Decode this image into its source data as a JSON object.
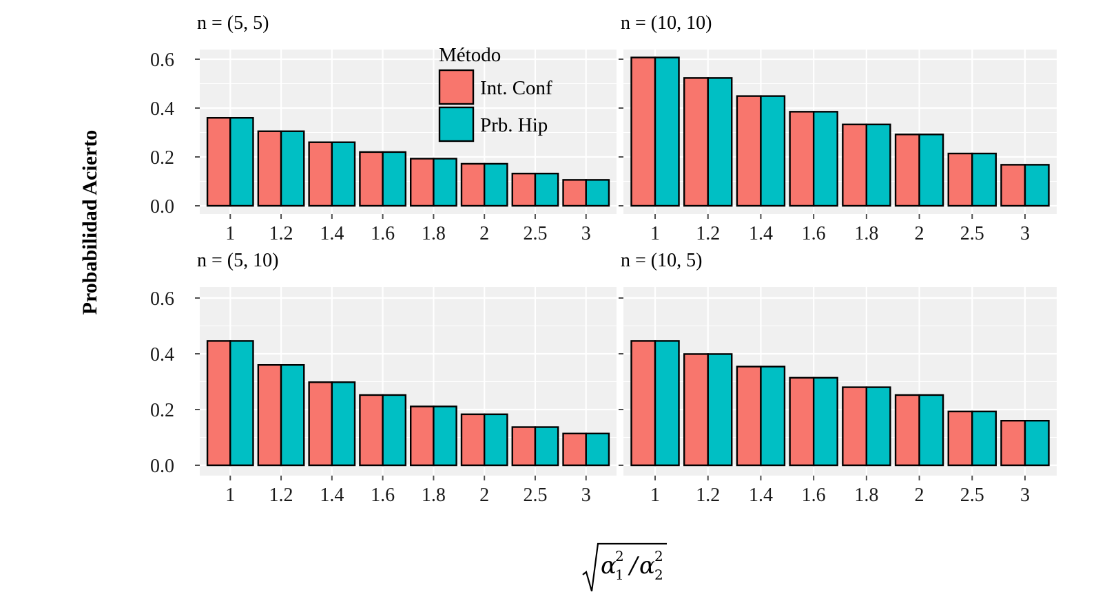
{
  "chart_data": [
    {
      "type": "bar",
      "panel": "top-left",
      "title": "n = (5, 5)",
      "categories": [
        "1",
        "1.2",
        "1.4",
        "1.6",
        "1.8",
        "2",
        "2.5",
        "3"
      ],
      "series": [
        {
          "name": "Int. Conf",
          "values": [
            0.36,
            0.305,
            0.26,
            0.22,
            0.193,
            0.172,
            0.132,
            0.106
          ]
        },
        {
          "name": "Prb. Hip",
          "values": [
            0.36,
            0.305,
            0.26,
            0.22,
            0.193,
            0.172,
            0.132,
            0.106
          ]
        }
      ],
      "ylim": [
        0,
        0.62
      ],
      "yticks": [
        "0.0",
        "0.2",
        "0.4",
        "0.6"
      ]
    },
    {
      "type": "bar",
      "panel": "top-right",
      "title": "n = (10, 10)",
      "categories": [
        "1",
        "1.2",
        "1.4",
        "1.6",
        "1.8",
        "2",
        "2.5",
        "3"
      ],
      "series": [
        {
          "name": "Int. Conf",
          "values": [
            0.607,
            0.523,
            0.449,
            0.385,
            0.333,
            0.292,
            0.214,
            0.168
          ]
        },
        {
          "name": "Prb. Hip",
          "values": [
            0.607,
            0.523,
            0.449,
            0.385,
            0.333,
            0.292,
            0.214,
            0.168
          ]
        }
      ],
      "ylim": [
        0,
        0.62
      ],
      "yticks": [
        "0.0",
        "0.2",
        "0.4",
        "0.6"
      ]
    },
    {
      "type": "bar",
      "panel": "bottom-left",
      "title": "n = (5, 10)",
      "categories": [
        "1",
        "1.2",
        "1.4",
        "1.6",
        "1.8",
        "2",
        "2.5",
        "3"
      ],
      "series": [
        {
          "name": "Int. Conf",
          "values": [
            0.446,
            0.36,
            0.298,
            0.252,
            0.211,
            0.183,
            0.137,
            0.114
          ]
        },
        {
          "name": "Prb. Hip",
          "values": [
            0.446,
            0.36,
            0.298,
            0.252,
            0.211,
            0.183,
            0.137,
            0.114
          ]
        }
      ],
      "ylim": [
        0,
        0.62
      ],
      "yticks": [
        "0.0",
        "0.2",
        "0.4",
        "0.6"
      ]
    },
    {
      "type": "bar",
      "panel": "bottom-right",
      "title": "n = (10, 5)",
      "categories": [
        "1",
        "1.2",
        "1.4",
        "1.6",
        "1.8",
        "2",
        "2.5",
        "3"
      ],
      "series": [
        {
          "name": "Int. Conf",
          "values": [
            0.446,
            0.399,
            0.354,
            0.314,
            0.28,
            0.252,
            0.193,
            0.16
          ]
        },
        {
          "name": "Prb. Hip",
          "values": [
            0.446,
            0.399,
            0.354,
            0.314,
            0.28,
            0.252,
            0.193,
            0.16
          ]
        }
      ],
      "ylim": [
        0,
        0.62
      ],
      "yticks": [
        "0.0",
        "0.2",
        "0.4",
        "0.6"
      ]
    }
  ],
  "ylabel": "Probabilidad Acierto",
  "xlabel": "sqrt(α1² / α2²)",
  "xlabel_parts": {
    "alpha": "α",
    "sub1": "1",
    "sub2": "2",
    "sup": "2",
    "slash": "/"
  },
  "legend": {
    "title": "Método",
    "placement": "inside top-left panel, top-right",
    "items": [
      {
        "label": "Int. Conf",
        "color": "#F8766D"
      },
      {
        "label": "Prb. Hip",
        "color": "#00BFC4"
      }
    ]
  },
  "colors": {
    "panel_bg": "#f0f0f0",
    "grid": "#ffffff",
    "bar_outline": "#000000"
  }
}
